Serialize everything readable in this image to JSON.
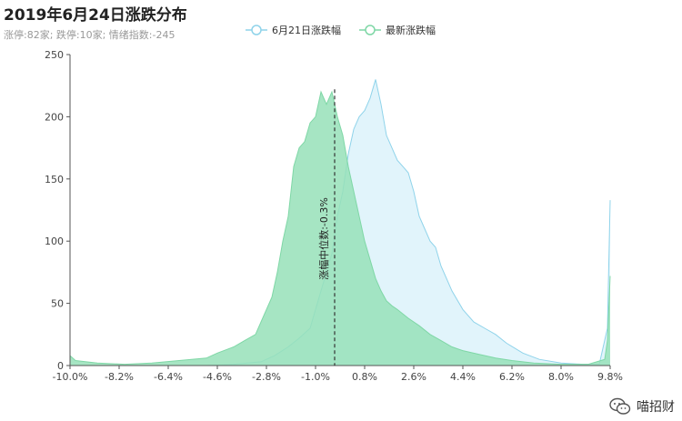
{
  "header": {
    "title": "2019年6月24日涨跌分布",
    "subtitle": "涨停:82家; 跌停:10家; 情绪指数:-245"
  },
  "watermark": {
    "text": "喵招财",
    "icon": "wechat-icon"
  },
  "colors": {
    "series_prev_line": "#8fd3ea",
    "series_prev_fill": "#dff3fb",
    "series_new_line": "#7fd7a6",
    "series_new_fill": "#96e0b8"
  },
  "chart_data": {
    "type": "area",
    "x_ticks": [
      "-10.0%",
      "-8.2%",
      "-6.4%",
      "-4.6%",
      "-2.8%",
      "-1.0%",
      "0.8%",
      "2.6%",
      "4.4%",
      "6.2%",
      "8.0%",
      "9.8%"
    ],
    "xlim": [
      -10.0,
      9.8
    ],
    "ylim": [
      0,
      250
    ],
    "y_ticks": [
      0,
      50,
      100,
      150,
      200,
      250
    ],
    "legend_position": "top-center",
    "median_line": {
      "x": -0.3,
      "label": "涨幅中位数:-0.3%"
    },
    "series": [
      {
        "name": "6月21日涨跌幅",
        "x": [
          -10.0,
          -9.0,
          -8.0,
          -7.0,
          -6.0,
          -5.0,
          -4.0,
          -3.5,
          -3.0,
          -2.5,
          -2.0,
          -1.6,
          -1.2,
          -1.0,
          -0.8,
          -0.6,
          -0.4,
          -0.2,
          0.0,
          0.2,
          0.4,
          0.6,
          0.8,
          1.0,
          1.2,
          1.4,
          1.6,
          1.8,
          2.0,
          2.2,
          2.4,
          2.6,
          2.8,
          3.0,
          3.2,
          3.4,
          3.6,
          3.8,
          4.0,
          4.4,
          4.8,
          5.2,
          5.6,
          6.0,
          6.6,
          7.2,
          8.0,
          8.8,
          9.4,
          9.7,
          9.8
        ],
        "y": [
          0,
          0,
          0,
          0,
          0,
          0,
          1,
          2,
          3,
          8,
          15,
          22,
          30,
          45,
          60,
          75,
          90,
          120,
          140,
          170,
          190,
          200,
          205,
          215,
          230,
          210,
          185,
          175,
          165,
          160,
          155,
          140,
          120,
          110,
          100,
          95,
          80,
          70,
          60,
          45,
          35,
          30,
          25,
          18,
          10,
          5,
          2,
          1,
          1,
          30,
          133
        ]
      },
      {
        "name": "最新涨跌幅",
        "x": [
          -10.0,
          -9.8,
          -9.0,
          -8.0,
          -7.0,
          -6.0,
          -5.0,
          -4.6,
          -4.0,
          -3.6,
          -3.2,
          -3.0,
          -2.8,
          -2.6,
          -2.4,
          -2.2,
          -2.0,
          -1.8,
          -1.6,
          -1.4,
          -1.2,
          -1.0,
          -0.8,
          -0.6,
          -0.4,
          -0.2,
          0.0,
          0.2,
          0.4,
          0.6,
          0.8,
          1.0,
          1.2,
          1.4,
          1.6,
          1.8,
          2.0,
          2.4,
          2.8,
          3.2,
          3.6,
          4.0,
          4.4,
          5.0,
          5.6,
          6.2,
          7.0,
          8.0,
          9.0,
          9.6,
          9.7,
          9.8
        ],
        "y": [
          8,
          4,
          2,
          1,
          2,
          4,
          6,
          10,
          15,
          20,
          25,
          35,
          45,
          55,
          75,
          100,
          120,
          160,
          175,
          180,
          195,
          200,
          220,
          210,
          220,
          200,
          185,
          160,
          140,
          120,
          100,
          85,
          70,
          60,
          52,
          48,
          45,
          38,
          32,
          25,
          20,
          15,
          12,
          9,
          6,
          4,
          2,
          1,
          1,
          5,
          20,
          72
        ]
      }
    ]
  }
}
